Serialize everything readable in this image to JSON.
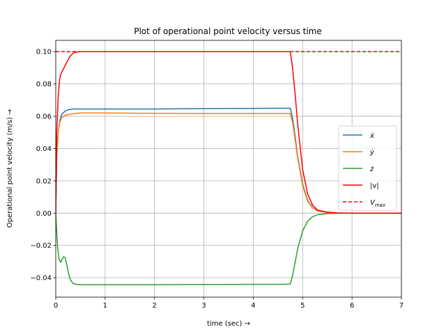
{
  "chart_data": {
    "type": "line",
    "title": "Plot of operational point velocity versus time",
    "xlabel": "time (sec)  →",
    "ylabel": "Operational point velocity (m/s)  →",
    "xlim": [
      0,
      7
    ],
    "ylim": [
      -0.052,
      0.107
    ],
    "xticks": [
      0,
      1,
      2,
      3,
      4,
      5,
      6,
      7
    ],
    "xtick_labels": [
      "0",
      "1",
      "2",
      "3",
      "4",
      "5",
      "6",
      "7"
    ],
    "yticks": [
      -0.04,
      -0.02,
      0.0,
      0.02,
      0.04,
      0.06,
      0.08,
      0.1
    ],
    "ytick_labels": [
      "−0.04",
      "−0.02",
      "0.00",
      "0.02",
      "0.04",
      "0.06",
      "0.08",
      "0.10"
    ],
    "grid": true,
    "legend_position": "center-right",
    "series": [
      {
        "name": "ẋ",
        "color": "#1f77b4",
        "dash": "",
        "x": [
          0,
          0.02,
          0.05,
          0.08,
          0.12,
          0.18,
          0.25,
          0.35,
          0.5,
          1.0,
          2.0,
          3.0,
          4.0,
          4.55,
          4.75,
          4.8,
          4.85,
          4.9,
          5.0,
          5.1,
          5.2,
          5.3,
          5.5,
          5.7,
          6.0,
          7.0
        ],
        "y": [
          0,
          0.035,
          0.05,
          0.057,
          0.061,
          0.063,
          0.064,
          0.0645,
          0.0645,
          0.0645,
          0.0645,
          0.0647,
          0.0649,
          0.065,
          0.065,
          0.058,
          0.047,
          0.035,
          0.018,
          0.008,
          0.0035,
          0.0015,
          0.0004,
          0.0001,
          0,
          0
        ]
      },
      {
        "name": "ẏ",
        "color": "#ff7f0e",
        "dash": "",
        "x": [
          0,
          0.02,
          0.05,
          0.08,
          0.12,
          0.18,
          0.25,
          0.35,
          0.5,
          0.7,
          1.0,
          2.0,
          3.0,
          4.0,
          4.55,
          4.75,
          4.8,
          4.85,
          4.9,
          5.0,
          5.1,
          5.2,
          5.3,
          5.5,
          5.7,
          6.0,
          7.0
        ],
        "y": [
          0,
          0.035,
          0.05,
          0.056,
          0.059,
          0.0605,
          0.061,
          0.0615,
          0.062,
          0.062,
          0.062,
          0.0618,
          0.0617,
          0.0617,
          0.0617,
          0.0617,
          0.0555,
          0.045,
          0.034,
          0.017,
          0.0075,
          0.0033,
          0.0014,
          0.0004,
          0.0001,
          0,
          0
        ]
      },
      {
        "name": "ż",
        "color": "#2ca02c",
        "dash": "",
        "x": [
          0,
          0.02,
          0.04,
          0.07,
          0.1,
          0.13,
          0.16,
          0.19,
          0.22,
          0.26,
          0.3,
          0.35,
          0.4,
          0.45,
          0.5,
          0.6,
          1.0,
          2.0,
          3.0,
          4.0,
          4.55,
          4.75,
          4.8,
          4.85,
          4.9,
          5.0,
          5.1,
          5.2,
          5.3,
          5.5,
          5.7,
          6.0,
          7.0
        ],
        "y": [
          0,
          -0.012,
          -0.022,
          -0.029,
          -0.0305,
          -0.0285,
          -0.027,
          -0.0275,
          -0.0315,
          -0.0375,
          -0.0415,
          -0.0435,
          -0.044,
          -0.0442,
          -0.0443,
          -0.0443,
          -0.0443,
          -0.0443,
          -0.0442,
          -0.0441,
          -0.0441,
          -0.0439,
          -0.038,
          -0.03,
          -0.022,
          -0.011,
          -0.005,
          -0.0022,
          -0.001,
          -0.0003,
          -0.0001,
          0,
          0
        ]
      },
      {
        "name": "|v|",
        "color": "#ff0000",
        "dash": "",
        "x": [
          0,
          0.02,
          0.05,
          0.08,
          0.1,
          0.15,
          0.2,
          0.25,
          0.3,
          0.35,
          0.4,
          0.45,
          0.5,
          0.6,
          1.0,
          2.0,
          3.0,
          4.0,
          4.55,
          4.75,
          4.8,
          4.85,
          4.9,
          5.0,
          5.1,
          5.2,
          5.3,
          5.5,
          5.7,
          6.0,
          7.0
        ],
        "y": [
          0,
          0.05,
          0.073,
          0.083,
          0.086,
          0.089,
          0.092,
          0.095,
          0.0975,
          0.099,
          0.0996,
          0.0999,
          0.1,
          0.1,
          0.1,
          0.1,
          0.1,
          0.1,
          0.1,
          0.1,
          0.089,
          0.073,
          0.055,
          0.027,
          0.012,
          0.005,
          0.002,
          0.0006,
          0.0002,
          0,
          0
        ]
      },
      {
        "name": "V_max",
        "color": "#ff0000",
        "dash": "5,3",
        "x": [
          0,
          7
        ],
        "y": [
          0.1,
          0.1
        ]
      }
    ]
  }
}
